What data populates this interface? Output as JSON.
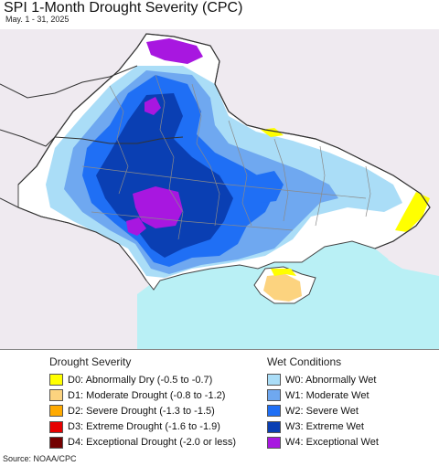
{
  "header": {
    "title": "SPI 1-Month Drought Severity (CPC)",
    "subtitle": "May. 1 - 31, 2025"
  },
  "legend": {
    "drought_heading": "Drought Severity",
    "wet_heading": "Wet Conditions",
    "drought_items": [
      {
        "label": "D0: Abnormally Dry (-0.5 to -0.7)",
        "color": "#ffff00"
      },
      {
        "label": "D1: Moderate Drought (-0.8 to -1.2)",
        "color": "#fcd37f"
      },
      {
        "label": "D2: Severe Drought (-1.3 to -1.5)",
        "color": "#ffaa00"
      },
      {
        "label": "D3: Extreme Drought (-1.6 to -1.9)",
        "color": "#e60000"
      },
      {
        "label": "D4: Exceptional Drought (-2.0 or less)",
        "color": "#730000"
      }
    ],
    "wet_items": [
      {
        "label": "W0: Abnormally Wet",
        "color": "#aaddf7"
      },
      {
        "label": "W1: Moderate Wet",
        "color": "#6fa8f0"
      },
      {
        "label": "W2: Severe Wet",
        "color": "#1f6ff5"
      },
      {
        "label": "W3: Extreme Wet",
        "color": "#0a3fb3"
      },
      {
        "label": "W4: Exceptional Wet",
        "color": "#a817e0"
      }
    ]
  },
  "footer": {
    "source": "Source: NOAA/CPC"
  },
  "map_colors": {
    "outside": "#efeaf0",
    "sea": "#b9f0f5",
    "land_normal": "#ffffff",
    "borders": "#555555",
    "oblast_lines": "#8a8a8a"
  }
}
